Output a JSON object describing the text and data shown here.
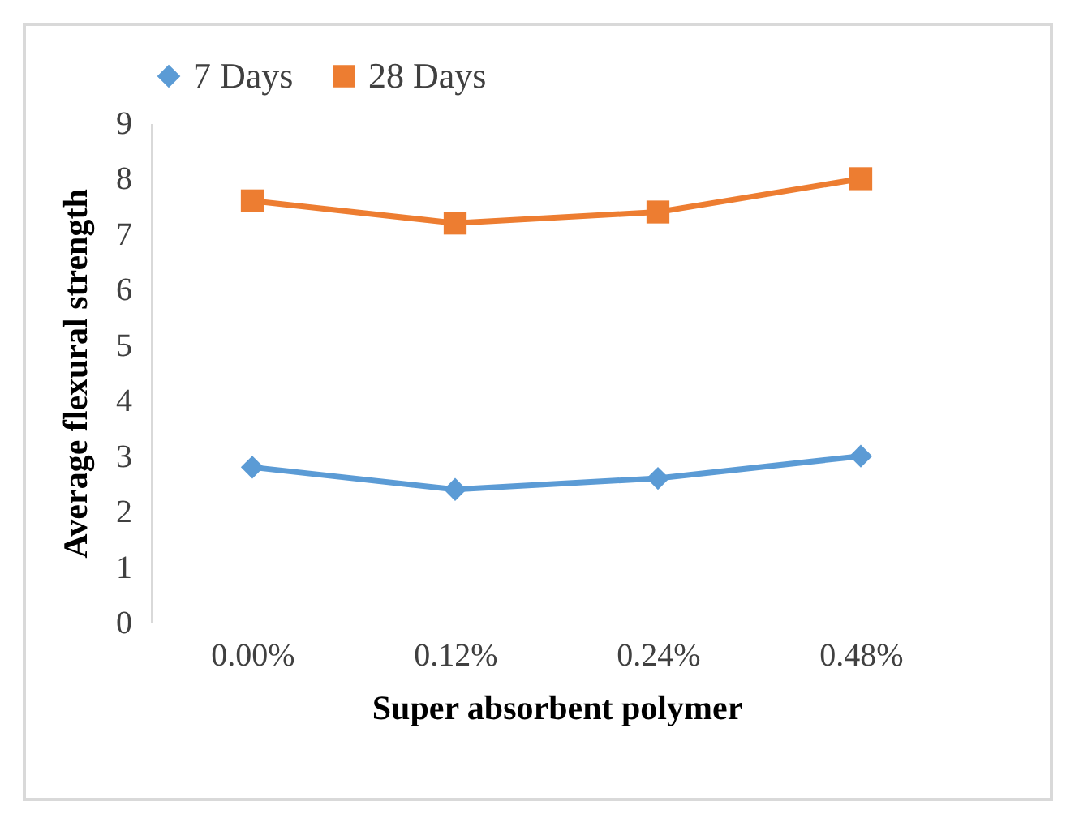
{
  "chart_data": {
    "type": "line",
    "xlabel": "Super absorbent  polymer",
    "ylabel": "Average  flexural strength",
    "categories": [
      "0.00%",
      "0.12%",
      "0.24%",
      "0.48%"
    ],
    "series": [
      {
        "name": "7 Days",
        "color": "#5b9bd5",
        "marker": "diamond",
        "values": [
          2.8,
          2.4,
          2.6,
          3.0
        ]
      },
      {
        "name": "28 Days",
        "color": "#ed7d31",
        "marker": "square",
        "values": [
          7.6,
          7.2,
          7.4,
          8.0
        ]
      }
    ],
    "ylim": [
      0,
      9
    ],
    "yticks": [
      0,
      1,
      2,
      3,
      4,
      5,
      6,
      7,
      8,
      9
    ],
    "grid": false,
    "line_style": "solid",
    "legend": "top"
  }
}
